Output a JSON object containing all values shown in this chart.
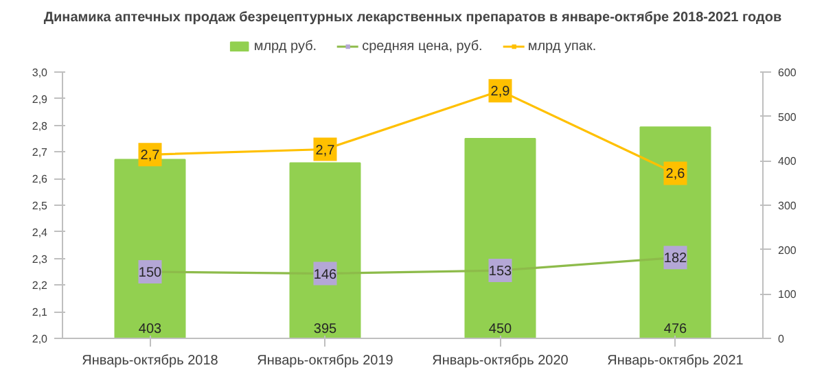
{
  "chart_data": {
    "type": "bar",
    "title": "Динамика аптечных продаж безрецептурных лекарственных препаратов в январе-октябре 2018-2021 годов",
    "categories": [
      "Январь-октябрь 2018",
      "Январь-октябрь 2019",
      "Январь-октябрь 2020",
      "Январь-октябрь 2021"
    ],
    "series": [
      {
        "name": "млрд руб.",
        "axis": "y2",
        "color": "#92d050",
        "values": [
          403,
          395,
          450,
          476
        ]
      },
      {
        "name": "средняя цена, руб.",
        "type": "line",
        "axis": "y2",
        "color": "#8dbb4a",
        "colors": [
          "#b4a7d6",
          "#b4a7d6",
          "#b4a7d6",
          "#b4a7d6"
        ],
        "marker": "square",
        "values": [
          150,
          146,
          153,
          182
        ]
      },
      {
        "name": "млрд упак.",
        "type": "line",
        "axis": "y",
        "color": "#ffc000",
        "marker": "square",
        "values": [
          2.69,
          2.71,
          2.93,
          2.62
        ],
        "value_labels": [
          "2,7",
          "2,7",
          "2,9",
          "2,6"
        ]
      }
    ],
    "ylim": [
      2.0,
      3.0
    ],
    "yticks": [
      {
        "value": 2.0,
        "label": "2,0"
      },
      {
        "value": 2.1,
        "label": "2,1"
      },
      {
        "value": 2.2,
        "label": "2,2"
      },
      {
        "value": 2.3,
        "label": "2,3"
      },
      {
        "value": 2.4,
        "label": "2,4"
      },
      {
        "value": 2.5,
        "label": "2,5"
      },
      {
        "value": 2.6,
        "label": "2,6"
      },
      {
        "value": 2.7,
        "label": "2,7"
      },
      {
        "value": 2.8,
        "label": "2,8"
      },
      {
        "value": 2.9,
        "label": "2,9"
      },
      {
        "value": 3.0,
        "label": "3,0"
      }
    ],
    "y2lim": [
      0,
      600
    ],
    "y2ticks": [
      0,
      100,
      200,
      300,
      400,
      500,
      600
    ],
    "data_labels": true,
    "legend": "top",
    "grid": false
  }
}
